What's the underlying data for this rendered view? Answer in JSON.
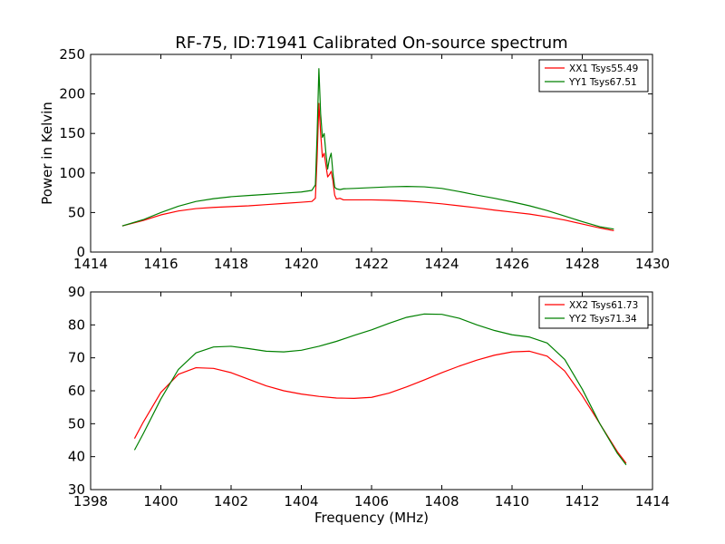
{
  "title": "RF-75, ID:71941 Calibrated On-source spectrum",
  "colors": {
    "xx": "#ff0000",
    "yy": "#008000",
    "axes": "#000000",
    "background": "#ffffff"
  },
  "chart_data": [
    {
      "type": "line",
      "ylabel": "Power in Kelvin",
      "xlabel": "",
      "xlim": [
        1414,
        1430
      ],
      "ylim": [
        0,
        250
      ],
      "xticks": [
        1414,
        1416,
        1418,
        1420,
        1422,
        1424,
        1426,
        1428,
        1430
      ],
      "yticks": [
        0,
        50,
        100,
        150,
        200,
        250
      ],
      "xtick_labels": [
        "1414",
        "1416",
        "1418",
        "1420",
        "1422",
        "1424",
        "1426",
        "1428",
        "1430"
      ],
      "ytick_labels": [
        "0",
        "50",
        "100",
        "150",
        "200",
        "250"
      ],
      "grid": false,
      "legend_position": "top-right",
      "series": [
        {
          "name": "XX1 Tsys55.49",
          "color": "#ff0000",
          "x": [
            1414.9,
            1415.5,
            1416.0,
            1416.5,
            1417.0,
            1417.5,
            1418.0,
            1418.5,
            1419.0,
            1419.5,
            1420.0,
            1420.3,
            1420.4,
            1420.45,
            1420.5,
            1420.55,
            1420.6,
            1420.65,
            1420.7,
            1420.75,
            1420.8,
            1420.85,
            1420.9,
            1420.95,
            1421.0,
            1421.1,
            1421.2,
            1421.5,
            1422.0,
            1422.5,
            1423.0,
            1423.5,
            1424.0,
            1424.5,
            1425.0,
            1425.5,
            1426.0,
            1426.5,
            1427.0,
            1427.5,
            1428.0,
            1428.5,
            1428.9
          ],
          "y": [
            33,
            40,
            47,
            52,
            55,
            56.5,
            57.5,
            58.5,
            60,
            61.5,
            63,
            64,
            68,
            120,
            188,
            150,
            120,
            125,
            110,
            95,
            98,
            102,
            90,
            72,
            67,
            68,
            66,
            66,
            66,
            65.5,
            64.5,
            63,
            61,
            58.5,
            56,
            53,
            50.5,
            48,
            44.5,
            40.5,
            35.5,
            30.5,
            27
          ]
        },
        {
          "name": "YY1 Tsys67.51",
          "color": "#008000",
          "x": [
            1414.9,
            1415.5,
            1416.0,
            1416.5,
            1417.0,
            1417.5,
            1418.0,
            1418.5,
            1419.0,
            1419.5,
            1420.0,
            1420.3,
            1420.4,
            1420.45,
            1420.5,
            1420.55,
            1420.6,
            1420.65,
            1420.7,
            1420.75,
            1420.8,
            1420.85,
            1420.9,
            1420.95,
            1421.0,
            1421.1,
            1421.2,
            1421.5,
            1422.0,
            1422.5,
            1423.0,
            1423.5,
            1424.0,
            1424.5,
            1425.0,
            1425.5,
            1426.0,
            1426.5,
            1427.0,
            1427.5,
            1428.0,
            1428.5,
            1428.9
          ],
          "y": [
            33,
            41,
            50,
            58,
            64,
            67.5,
            70,
            71.5,
            73,
            74.5,
            76,
            78,
            85,
            150,
            232,
            175,
            145,
            150,
            125,
            105,
            118,
            125,
            100,
            82,
            80,
            79,
            80,
            80.5,
            81.5,
            82.5,
            83,
            82.5,
            80.5,
            76.5,
            72,
            68,
            63.5,
            58.5,
            52.5,
            45.5,
            38.5,
            32,
            29
          ]
        }
      ]
    },
    {
      "type": "line",
      "ylabel": "",
      "xlabel": "Frequency (MHz)",
      "xlim": [
        1398,
        1414
      ],
      "ylim": [
        30,
        90
      ],
      "xticks": [
        1398,
        1400,
        1402,
        1404,
        1406,
        1408,
        1410,
        1412,
        1414
      ],
      "yticks": [
        30,
        40,
        50,
        60,
        70,
        80,
        90
      ],
      "xtick_labels": [
        "1398",
        "1400",
        "1402",
        "1404",
        "1406",
        "1408",
        "1410",
        "1412",
        "1414"
      ],
      "ytick_labels": [
        "30",
        "40",
        "50",
        "60",
        "70",
        "80",
        "90"
      ],
      "grid": false,
      "legend_position": "top-right",
      "series": [
        {
          "name": "XX2 Tsys61.73",
          "color": "#ff0000",
          "x": [
            1399.25,
            1399.5,
            1400.0,
            1400.5,
            1401.0,
            1401.5,
            1402.0,
            1402.5,
            1403.0,
            1403.5,
            1404.0,
            1404.5,
            1405.0,
            1405.5,
            1406.0,
            1406.5,
            1407.0,
            1407.5,
            1408.0,
            1408.5,
            1409.0,
            1409.5,
            1410.0,
            1410.5,
            1411.0,
            1411.5,
            1412.0,
            1412.5,
            1413.0,
            1413.25
          ],
          "y": [
            45.5,
            50.5,
            59.5,
            65,
            67,
            66.8,
            65.5,
            63.5,
            61.5,
            60,
            59,
            58.3,
            57.8,
            57.7,
            58,
            59.3,
            61.2,
            63.3,
            65.5,
            67.5,
            69.3,
            70.8,
            71.8,
            72,
            70.5,
            66,
            58.5,
            50,
            41.5,
            38
          ]
        },
        {
          "name": "YY2 Tsys71.34",
          "color": "#008000",
          "x": [
            1399.25,
            1399.5,
            1400.0,
            1400.5,
            1401.0,
            1401.5,
            1402.0,
            1402.5,
            1403.0,
            1403.5,
            1404.0,
            1404.5,
            1405.0,
            1405.5,
            1406.0,
            1406.5,
            1407.0,
            1407.5,
            1408.0,
            1408.5,
            1409.0,
            1409.5,
            1410.0,
            1410.5,
            1411.0,
            1411.5,
            1412.0,
            1412.5,
            1413.0,
            1413.25
          ],
          "y": [
            42,
            47,
            57.5,
            66.5,
            71.5,
            73.3,
            73.5,
            72.8,
            72,
            71.8,
            72.3,
            73.5,
            75,
            76.8,
            78.5,
            80.5,
            82.3,
            83.3,
            83.2,
            82,
            80,
            78.3,
            77,
            76.3,
            74.5,
            69.5,
            60.5,
            50,
            41,
            37.5
          ]
        }
      ]
    }
  ]
}
